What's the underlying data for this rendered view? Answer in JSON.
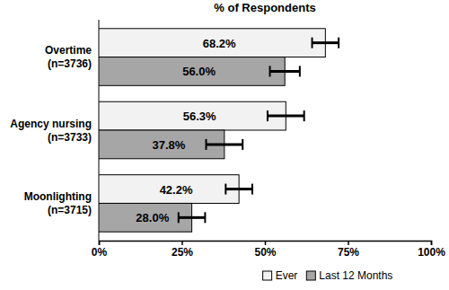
{
  "chart_data": {
    "type": "bar",
    "orientation": "horizontal",
    "title": "% of Respondents",
    "categories": [
      "Overtime\n(n=3736)",
      "Agency nursing\n(n=3733)",
      "Moonlighting\n(n=3715)"
    ],
    "series": [
      {
        "name": "Ever",
        "color": "#f2f2f2",
        "values": [
          68.2,
          56.3,
          42.2
        ],
        "value_labels": [
          "68.2%",
          "56.3%",
          "42.2%"
        ],
        "errors": [
          4,
          5.5,
          4
        ]
      },
      {
        "name": "Last 12 Months",
        "color": "#a6a6a6",
        "values": [
          56.0,
          37.8,
          28.0
        ],
        "value_labels": [
          "56.0%",
          "37.8%",
          "28.0%"
        ],
        "errors": [
          4.5,
          5.5,
          4
        ]
      }
    ],
    "xlim": [
      0,
      100
    ],
    "xticks": [
      {
        "value": 0,
        "label": "0%"
      },
      {
        "value": 25,
        "label": "25%"
      },
      {
        "value": 50,
        "label": "50%"
      },
      {
        "value": 75,
        "label": "75%"
      },
      {
        "value": 100,
        "label": "100%"
      }
    ],
    "data_labels": true,
    "legend": "bottom",
    "grid": false
  }
}
